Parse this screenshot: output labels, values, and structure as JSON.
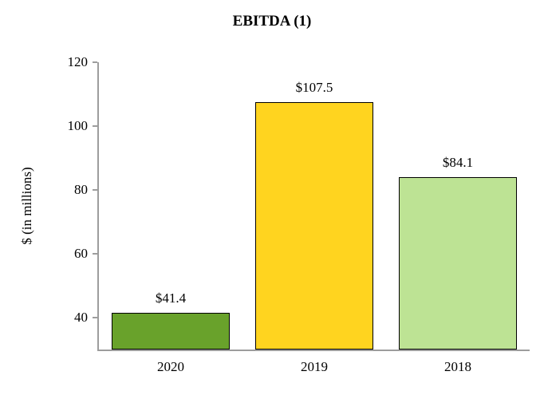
{
  "chart_data": {
    "type": "bar",
    "title": "EBITDA (1)",
    "ylabel": "$ (in millions)",
    "xlabel": "",
    "categories": [
      "2020",
      "2019",
      "2018"
    ],
    "values": [
      41.4,
      107.5,
      84.1
    ],
    "value_labels": [
      "$41.4",
      "$107.5",
      "$84.1"
    ],
    "bar_colors": [
      "#69A22B",
      "#FFD41F",
      "#BDE394"
    ],
    "bar_border_color": "#000000",
    "axis_color": "#9d9d9d",
    "ylim": [
      30,
      120
    ],
    "yticks": [
      40,
      60,
      80,
      100,
      120
    ],
    "grid": "off",
    "legend": "none"
  }
}
